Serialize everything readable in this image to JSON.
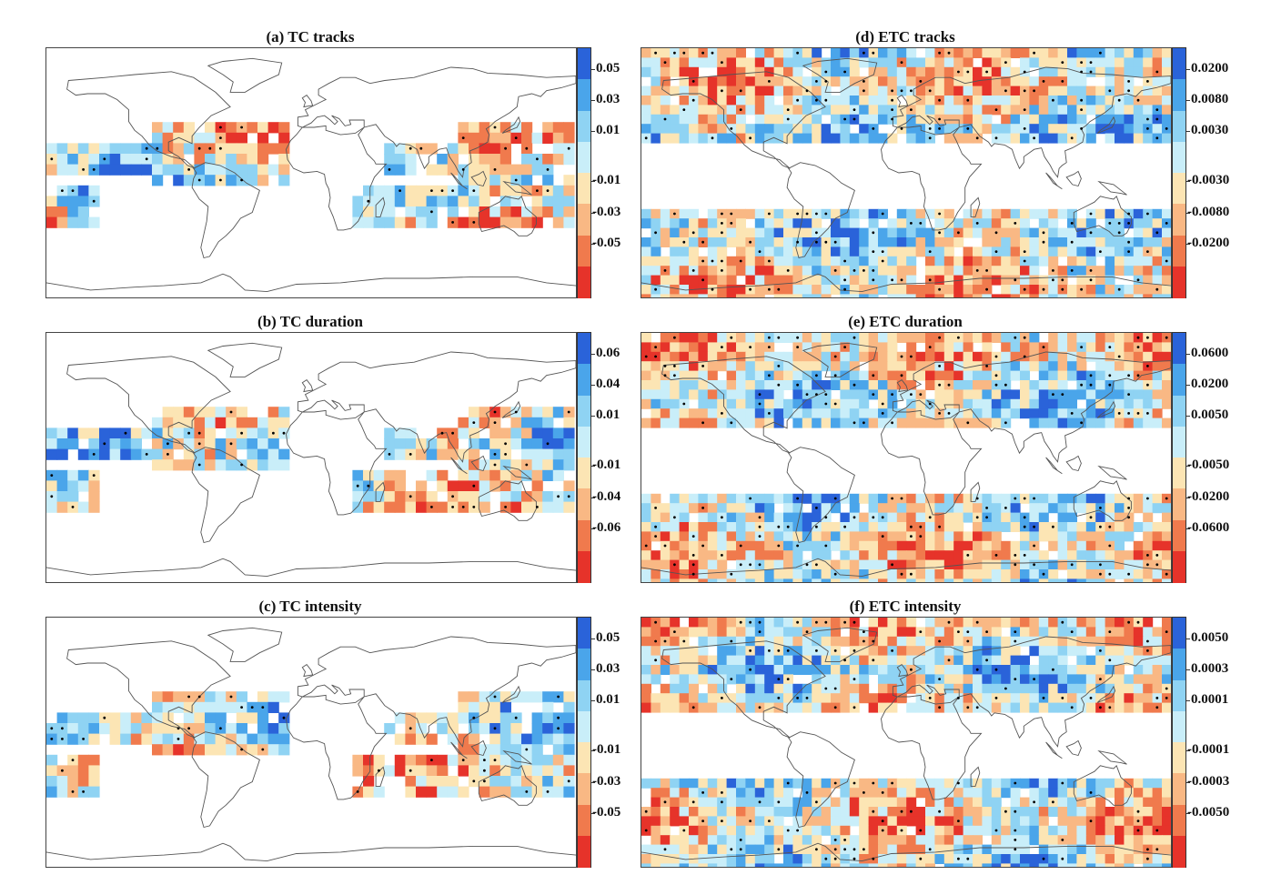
{
  "chart_data": [
    {
      "type": "heatmap",
      "id": "a",
      "title": "(a) TC tracks",
      "colorbar_ticks": [
        "0.05",
        "0.03",
        "0.01",
        "-0.01",
        "-0.03",
        "-0.05"
      ],
      "colors": [
        "#e6332a",
        "#f07a4d",
        "#f9b884",
        "#fce5b4",
        "#c9eef9",
        "#8fd3f3",
        "#4aa5ea",
        "#2a63d9"
      ],
      "basemap": "world coastlines",
      "data_extent": "tropical cyclone basins"
    },
    {
      "type": "heatmap",
      "id": "b",
      "title": "(b) TC duration",
      "colorbar_ticks": [
        "0.06",
        "0.04",
        "0.01",
        "-0.01",
        "-0.04",
        "-0.06"
      ],
      "colors": [
        "#e6332a",
        "#f07a4d",
        "#f9b884",
        "#fce5b4",
        "#c9eef9",
        "#8fd3f3",
        "#4aa5ea",
        "#2a63d9"
      ],
      "basemap": "world coastlines",
      "data_extent": "tropical cyclone basins"
    },
    {
      "type": "heatmap",
      "id": "c",
      "title": "(c) TC intensity",
      "colorbar_ticks": [
        "0.05",
        "0.03",
        "0.01",
        "-0.01",
        "-0.03",
        "-0.05"
      ],
      "colors": [
        "#e6332a",
        "#f07a4d",
        "#f9b884",
        "#fce5b4",
        "#c9eef9",
        "#8fd3f3",
        "#4aa5ea",
        "#2a63d9"
      ],
      "basemap": "world coastlines",
      "data_extent": "tropical cyclone basins"
    },
    {
      "type": "heatmap",
      "id": "d",
      "title": "(d) ETC tracks",
      "colorbar_ticks": [
        "0.0200",
        "0.0080",
        "0.0030",
        "-0.0030",
        "-0.0080",
        "-0.0200"
      ],
      "colors": [
        "#e6332a",
        "#f07a4d",
        "#f9b884",
        "#fce5b4",
        "#c9eef9",
        "#8fd3f3",
        "#4aa5ea",
        "#2a63d9"
      ],
      "basemap": "world coastlines",
      "data_extent": "extratropics"
    },
    {
      "type": "heatmap",
      "id": "e",
      "title": "(e) ETC duration",
      "colorbar_ticks": [
        "0.0600",
        "0.0200",
        "0.0050",
        "-0.0050",
        "-0.0200",
        "-0.0600"
      ],
      "colors": [
        "#e6332a",
        "#f07a4d",
        "#f9b884",
        "#fce5b4",
        "#c9eef9",
        "#8fd3f3",
        "#4aa5ea",
        "#2a63d9"
      ],
      "basemap": "world coastlines",
      "data_extent": "extratropics"
    },
    {
      "type": "heatmap",
      "id": "f",
      "title": "(f) ETC intensity",
      "colorbar_ticks": [
        "0.0050",
        "0.0003",
        "0.0001",
        "-0.0001",
        "-0.0003",
        "-0.0050"
      ],
      "colors": [
        "#e6332a",
        "#f07a4d",
        "#f9b884",
        "#fce5b4",
        "#c9eef9",
        "#8fd3f3",
        "#4aa5ea",
        "#2a63d9"
      ],
      "basemap": "world coastlines",
      "data_extent": "extratropics"
    }
  ]
}
